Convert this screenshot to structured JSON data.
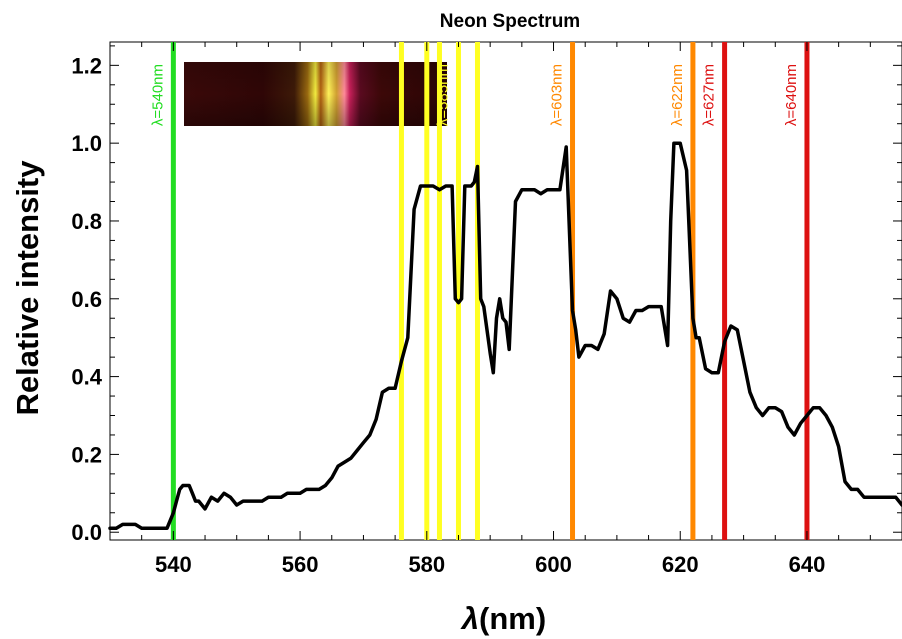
{
  "chart_data": {
    "type": "line",
    "title": "Neon Spectrum",
    "xlabel_symbol": "λ",
    "xlabel_unit": "(nm)",
    "ylabel": "Relative intensity",
    "xlim": [
      530,
      655
    ],
    "ylim": [
      -0.02,
      1.26
    ],
    "xticks": [
      540,
      560,
      580,
      600,
      620,
      640
    ],
    "yticks": [
      0.0,
      0.2,
      0.4,
      0.6,
      0.8,
      1.0,
      1.2
    ],
    "series": [
      {
        "line_color": "#000000",
        "x": [
          530,
          531,
          532,
          533,
          534,
          535,
          536,
          537,
          538,
          539,
          540,
          540.5,
          541,
          541.5,
          542,
          542.5,
          543,
          543.5,
          544,
          545,
          546,
          547,
          548,
          549,
          550,
          551,
          552,
          553,
          554,
          555,
          556,
          557,
          558,
          559,
          560,
          561,
          562,
          563,
          564,
          565,
          566,
          567,
          568,
          569,
          570,
          571,
          572,
          573,
          574,
          575,
          576,
          577,
          578,
          579,
          580,
          581,
          582,
          583,
          584,
          584.5,
          585,
          585.5,
          586,
          587,
          587.5,
          588,
          588.5,
          589,
          590,
          590.5,
          591,
          591.5,
          592,
          592.5,
          593,
          594,
          595,
          596,
          597,
          598,
          599,
          600,
          601,
          602,
          603,
          603.5,
          604,
          605,
          606,
          607,
          608,
          609,
          610,
          611,
          612,
          613,
          614,
          615,
          616,
          617,
          618,
          618.5,
          619,
          620,
          621,
          622,
          622.5,
          623,
          624,
          625,
          626,
          627,
          628,
          629,
          630,
          631,
          632,
          633,
          634,
          635,
          636,
          637,
          638,
          639,
          640,
          641,
          642,
          643,
          644,
          645,
          646,
          647,
          648,
          649,
          650,
          651,
          652,
          653,
          654,
          655
        ],
        "y": [
          0.01,
          0.01,
          0.02,
          0.02,
          0.02,
          0.01,
          0.01,
          0.01,
          0.01,
          0.01,
          0.05,
          0.08,
          0.11,
          0.12,
          0.12,
          0.12,
          0.1,
          0.08,
          0.08,
          0.06,
          0.09,
          0.08,
          0.1,
          0.09,
          0.07,
          0.08,
          0.08,
          0.08,
          0.08,
          0.09,
          0.09,
          0.09,
          0.1,
          0.1,
          0.1,
          0.11,
          0.11,
          0.11,
          0.12,
          0.14,
          0.17,
          0.18,
          0.19,
          0.21,
          0.23,
          0.25,
          0.29,
          0.36,
          0.37,
          0.37,
          0.44,
          0.5,
          0.83,
          0.89,
          0.89,
          0.89,
          0.88,
          0.89,
          0.89,
          0.6,
          0.59,
          0.6,
          0.89,
          0.89,
          0.9,
          0.94,
          0.6,
          0.58,
          0.46,
          0.41,
          0.55,
          0.6,
          0.55,
          0.54,
          0.47,
          0.85,
          0.88,
          0.88,
          0.88,
          0.87,
          0.88,
          0.88,
          0.88,
          0.99,
          0.57,
          0.52,
          0.45,
          0.48,
          0.48,
          0.47,
          0.51,
          0.62,
          0.6,
          0.55,
          0.54,
          0.57,
          0.57,
          0.58,
          0.58,
          0.58,
          0.48,
          0.8,
          1.0,
          1.0,
          0.93,
          0.55,
          0.5,
          0.5,
          0.42,
          0.41,
          0.41,
          0.49,
          0.53,
          0.52,
          0.44,
          0.36,
          0.32,
          0.3,
          0.32,
          0.32,
          0.31,
          0.27,
          0.25,
          0.28,
          0.3,
          0.32,
          0.32,
          0.3,
          0.27,
          0.22,
          0.13,
          0.11,
          0.11,
          0.09,
          0.09,
          0.09,
          0.09,
          0.09,
          0.09,
          0.07
        ]
      }
    ],
    "vertical_lines": [
      {
        "x": 540,
        "color": "#22dd22",
        "label": "λ=540nm",
        "show_label": true
      },
      {
        "x": 576,
        "color": "#ffff22",
        "label": "",
        "show_label": false
      },
      {
        "x": 580,
        "color": "#ffff22",
        "label": "",
        "show_label": false
      },
      {
        "x": 582,
        "color": "#ffff22",
        "label": "",
        "show_label": false
      },
      {
        "x": 585,
        "color": "#ffff22",
        "label": "λ=585nm",
        "show_label": true
      },
      {
        "x": 588,
        "color": "#ffff22",
        "label": "",
        "show_label": false
      },
      {
        "x": 603,
        "color": "#ff8800",
        "label": "λ=603nm",
        "show_label": true
      },
      {
        "x": 622,
        "color": "#ff8800",
        "label": "λ=622nm",
        "show_label": true
      },
      {
        "x": 627,
        "color": "#dd1111",
        "label": "λ=627nm",
        "show_label": true
      },
      {
        "x": 640,
        "color": "#dd1111",
        "label": "λ=640nm",
        "show_label": true
      }
    ],
    "inset_image": {
      "description_free": true,
      "bands": [
        {
          "pos": 0.0,
          "color": "#3a0909"
        },
        {
          "pos": 0.3,
          "color": "#2f0606"
        },
        {
          "pos": 0.42,
          "color": "#3d1a08"
        },
        {
          "pos": 0.47,
          "color": "#9a6a10"
        },
        {
          "pos": 0.5,
          "color": "#f2ec40"
        },
        {
          "pos": 0.52,
          "color": "#b06010"
        },
        {
          "pos": 0.55,
          "color": "#fff25a"
        },
        {
          "pos": 0.58,
          "color": "#d0a030"
        },
        {
          "pos": 0.61,
          "color": "#ff8a9a"
        },
        {
          "pos": 0.63,
          "color": "#c8205a"
        },
        {
          "pos": 0.67,
          "color": "#5a0a20"
        },
        {
          "pos": 0.75,
          "color": "#3c0808"
        },
        {
          "pos": 1.0,
          "color": "#2a0505"
        }
      ]
    }
  }
}
